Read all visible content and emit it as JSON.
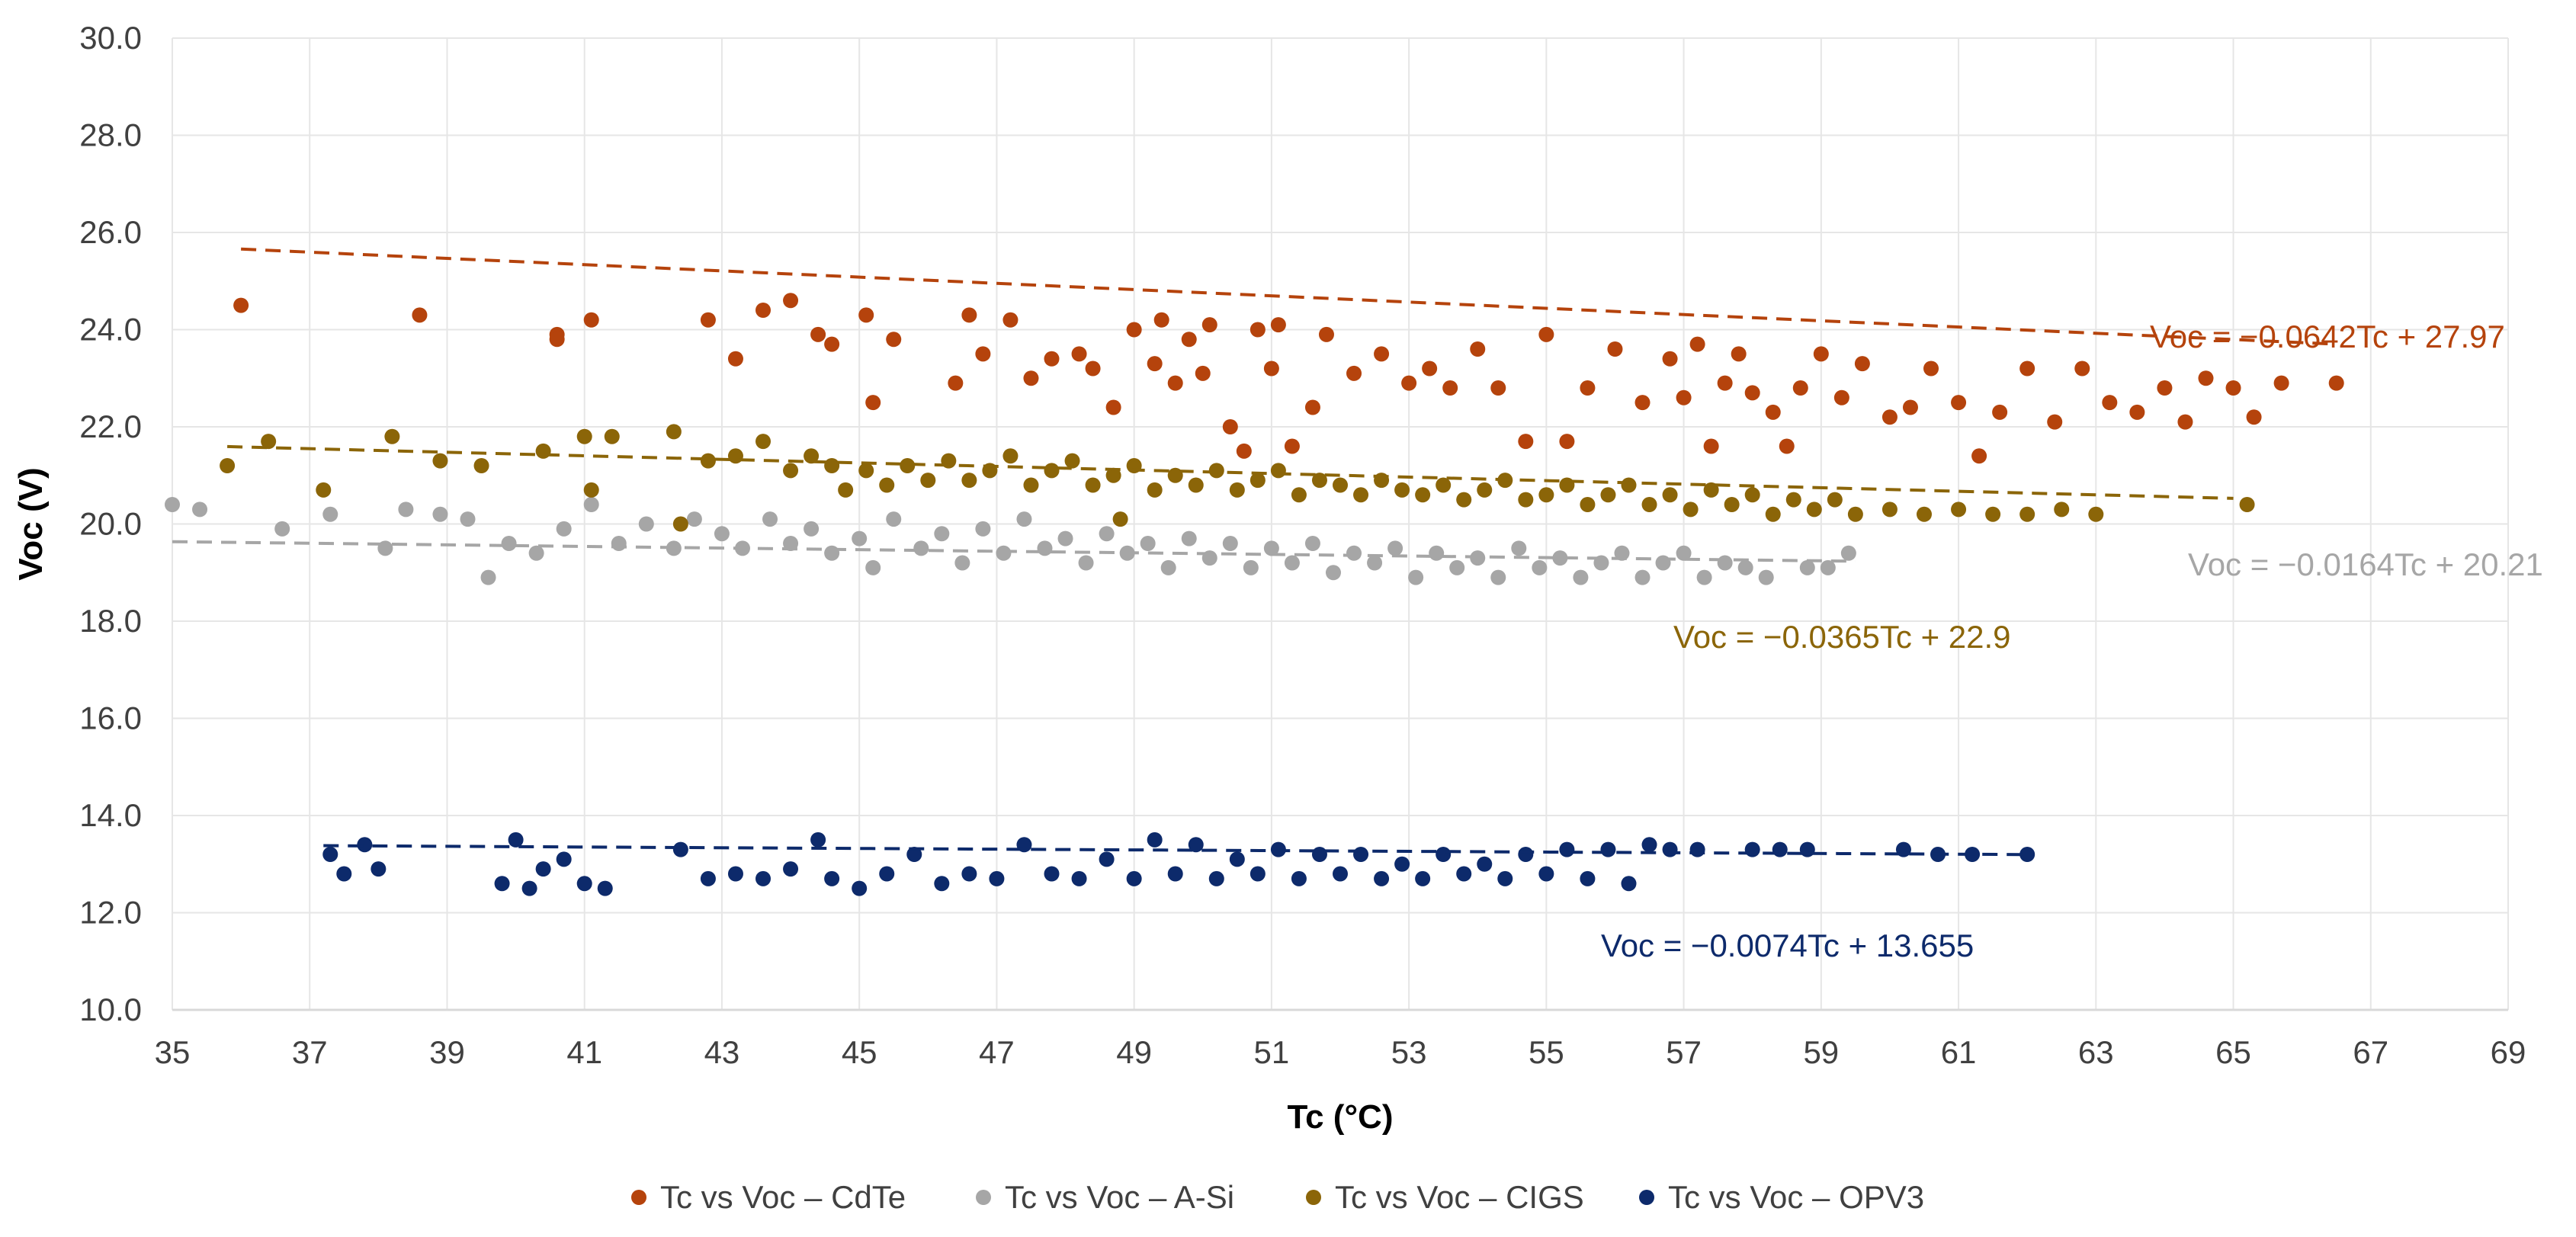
{
  "chart_data": {
    "type": "scatter",
    "title": "",
    "xlabel": "Tc (°C)",
    "ylabel": "Voc (V)",
    "xlim": [
      35,
      69
    ],
    "ylim": [
      10,
      30
    ],
    "xticks": [
      "35",
      "37",
      "39",
      "41",
      "43",
      "45",
      "47",
      "49",
      "51",
      "53",
      "55",
      "57",
      "59",
      "61",
      "63",
      "65",
      "67",
      "69"
    ],
    "yticks": [
      "10.0",
      "12.0",
      "14.0",
      "16.0",
      "18.0",
      "20.0",
      "22.0",
      "24.0",
      "26.0",
      "28.0",
      "30.0"
    ],
    "grid": "vertical-and-horizontal",
    "legend_position": "bottom",
    "series": [
      {
        "name": "Tc vs Voc – CdTe",
        "color": "#b5430c",
        "trendline": {
          "equation": "Voc = −0.0642Tc + 27.97",
          "slope": -0.0642,
          "intercept": 27.97,
          "x_range": [
            36,
            66.5
          ]
        },
        "points": [
          [
            36,
            24.5
          ],
          [
            38.6,
            24.3
          ],
          [
            40.6,
            23.9
          ],
          [
            40.6,
            23.8
          ],
          [
            41.1,
            24.2
          ],
          [
            42.8,
            24.2
          ],
          [
            43.2,
            23.4
          ],
          [
            43.6,
            24.4
          ],
          [
            44,
            24.6
          ],
          [
            44.4,
            23.9
          ],
          [
            44.6,
            23.7
          ],
          [
            45.1,
            24.3
          ],
          [
            45.2,
            22.5
          ],
          [
            45.5,
            23.8
          ],
          [
            46.4,
            22.9
          ],
          [
            46.6,
            24.3
          ],
          [
            46.8,
            23.5
          ],
          [
            47.2,
            24.2
          ],
          [
            47.5,
            23
          ],
          [
            47.8,
            23.4
          ],
          [
            48.2,
            23.5
          ],
          [
            48.4,
            23.2
          ],
          [
            48.7,
            22.4
          ],
          [
            49,
            24
          ],
          [
            49.3,
            23.3
          ],
          [
            49.4,
            24.2
          ],
          [
            49.6,
            22.9
          ],
          [
            49.8,
            23.8
          ],
          [
            50,
            23.1
          ],
          [
            50.1,
            24.1
          ],
          [
            50.4,
            22
          ],
          [
            50.6,
            21.5
          ],
          [
            50.8,
            24
          ],
          [
            51,
            23.2
          ],
          [
            51.1,
            24.1
          ],
          [
            51.3,
            21.6
          ],
          [
            51.6,
            22.4
          ],
          [
            51.8,
            23.9
          ],
          [
            52.2,
            23.1
          ],
          [
            52.6,
            23.5
          ],
          [
            53,
            22.9
          ],
          [
            53.3,
            23.2
          ],
          [
            53.6,
            22.8
          ],
          [
            54,
            23.6
          ],
          [
            54.3,
            22.8
          ],
          [
            54.7,
            21.7
          ],
          [
            55,
            23.9
          ],
          [
            55.3,
            21.7
          ],
          [
            55.6,
            22.8
          ],
          [
            56,
            23.6
          ],
          [
            56.4,
            22.5
          ],
          [
            56.8,
            23.4
          ],
          [
            57,
            22.6
          ],
          [
            57.2,
            23.7
          ],
          [
            57.4,
            21.6
          ],
          [
            57.6,
            22.9
          ],
          [
            57.8,
            23.5
          ],
          [
            58,
            22.7
          ],
          [
            58.3,
            22.3
          ],
          [
            58.5,
            21.6
          ],
          [
            58.7,
            22.8
          ],
          [
            59,
            23.5
          ],
          [
            59.3,
            22.6
          ],
          [
            59.6,
            23.3
          ],
          [
            60,
            22.2
          ],
          [
            60.3,
            22.4
          ],
          [
            60.6,
            23.2
          ],
          [
            61,
            22.5
          ],
          [
            61.3,
            21.4
          ],
          [
            61.6,
            22.3
          ],
          [
            62,
            23.2
          ],
          [
            62.4,
            22.1
          ],
          [
            62.8,
            23.2
          ],
          [
            63.2,
            22.5
          ],
          [
            63.6,
            22.3
          ],
          [
            64,
            22.8
          ],
          [
            64.3,
            22.1
          ],
          [
            64.6,
            23
          ],
          [
            65,
            22.8
          ],
          [
            65.3,
            22.2
          ],
          [
            65.7,
            22.9
          ],
          [
            66.5,
            22.9
          ]
        ]
      },
      {
        "name": "Tc vs Voc – A-Si",
        "color": "#a6a6a6",
        "trendline": {
          "equation": "Voc = −0.0164Tc + 20.21",
          "slope": -0.0164,
          "intercept": 20.21,
          "x_range": [
            35,
            59.5
          ]
        },
        "points": [
          [
            35,
            20.4
          ],
          [
            35.4,
            20.3
          ],
          [
            36.6,
            19.9
          ],
          [
            37.3,
            20.2
          ],
          [
            38.1,
            19.5
          ],
          [
            38.4,
            20.3
          ],
          [
            38.9,
            20.2
          ],
          [
            39.3,
            20.1
          ],
          [
            39.6,
            18.9
          ],
          [
            39.9,
            19.6
          ],
          [
            40.3,
            19.4
          ],
          [
            40.7,
            19.9
          ],
          [
            41.1,
            20.4
          ],
          [
            41.5,
            19.6
          ],
          [
            41.9,
            20
          ],
          [
            42.3,
            19.5
          ],
          [
            42.6,
            20.1
          ],
          [
            43,
            19.8
          ],
          [
            43.3,
            19.5
          ],
          [
            43.7,
            20.1
          ],
          [
            44,
            19.6
          ],
          [
            44.3,
            19.9
          ],
          [
            44.6,
            19.4
          ],
          [
            45,
            19.7
          ],
          [
            45.2,
            19.1
          ],
          [
            45.5,
            20.1
          ],
          [
            45.9,
            19.5
          ],
          [
            46.2,
            19.8
          ],
          [
            46.5,
            19.2
          ],
          [
            46.8,
            19.9
          ],
          [
            47.1,
            19.4
          ],
          [
            47.4,
            20.1
          ],
          [
            47.7,
            19.5
          ],
          [
            48,
            19.7
          ],
          [
            48.3,
            19.2
          ],
          [
            48.6,
            19.8
          ],
          [
            48.9,
            19.4
          ],
          [
            49.2,
            19.6
          ],
          [
            49.5,
            19.1
          ],
          [
            49.8,
            19.7
          ],
          [
            50.1,
            19.3
          ],
          [
            50.4,
            19.6
          ],
          [
            50.7,
            19.1
          ],
          [
            51,
            19.5
          ],
          [
            51.3,
            19.2
          ],
          [
            51.6,
            19.6
          ],
          [
            51.9,
            19
          ],
          [
            52.2,
            19.4
          ],
          [
            52.5,
            19.2
          ],
          [
            52.8,
            19.5
          ],
          [
            53.1,
            18.9
          ],
          [
            53.4,
            19.4
          ],
          [
            53.7,
            19.1
          ],
          [
            54,
            19.3
          ],
          [
            54.3,
            18.9
          ],
          [
            54.6,
            19.5
          ],
          [
            54.9,
            19.1
          ],
          [
            55.2,
            19.3
          ],
          [
            55.5,
            18.9
          ],
          [
            55.8,
            19.2
          ],
          [
            56.1,
            19.4
          ],
          [
            56.4,
            18.9
          ],
          [
            56.7,
            19.2
          ],
          [
            57,
            19.4
          ],
          [
            57.3,
            18.9
          ],
          [
            57.6,
            19.2
          ],
          [
            57.9,
            19.1
          ],
          [
            58.2,
            18.9
          ],
          [
            58.8,
            19.1
          ],
          [
            59.1,
            19.1
          ],
          [
            59.4,
            19.4
          ]
        ]
      },
      {
        "name": "Tc vs Voc – CIGS",
        "color": "#8b6508",
        "trendline": {
          "equation": "Voc = −0.0365Tc + 22.9",
          "slope": -0.0365,
          "intercept": 22.9,
          "x_range": [
            35.8,
            65
          ]
        },
        "points": [
          [
            35.8,
            21.2
          ],
          [
            36.4,
            21.7
          ],
          [
            37.2,
            20.7
          ],
          [
            38.2,
            21.8
          ],
          [
            38.9,
            21.3
          ],
          [
            39.5,
            21.2
          ],
          [
            40.4,
            21.5
          ],
          [
            41,
            21.8
          ],
          [
            41.4,
            21.8
          ],
          [
            41.1,
            20.7
          ],
          [
            42.3,
            21.9
          ],
          [
            42.4,
            20
          ],
          [
            42.8,
            21.3
          ],
          [
            43.2,
            21.4
          ],
          [
            43.6,
            21.7
          ],
          [
            44,
            21.1
          ],
          [
            44.3,
            21.4
          ],
          [
            44.6,
            21.2
          ],
          [
            44.8,
            20.7
          ],
          [
            45.1,
            21.1
          ],
          [
            45.4,
            20.8
          ],
          [
            45.7,
            21.2
          ],
          [
            46,
            20.9
          ],
          [
            46.3,
            21.3
          ],
          [
            46.6,
            20.9
          ],
          [
            46.9,
            21.1
          ],
          [
            47.2,
            21.4
          ],
          [
            47.5,
            20.8
          ],
          [
            47.8,
            21.1
          ],
          [
            48.1,
            21.3
          ],
          [
            48.4,
            20.8
          ],
          [
            48.7,
            21
          ],
          [
            48.8,
            20.1
          ],
          [
            49,
            21.2
          ],
          [
            49.3,
            20.7
          ],
          [
            49.6,
            21
          ],
          [
            49.9,
            20.8
          ],
          [
            50.2,
            21.1
          ],
          [
            50.5,
            20.7
          ],
          [
            50.8,
            20.9
          ],
          [
            51.1,
            21.1
          ],
          [
            51.4,
            20.6
          ],
          [
            51.7,
            20.9
          ],
          [
            52,
            20.8
          ],
          [
            52.3,
            20.6
          ],
          [
            52.6,
            20.9
          ],
          [
            52.9,
            20.7
          ],
          [
            53.2,
            20.6
          ],
          [
            53.5,
            20.8
          ],
          [
            53.8,
            20.5
          ],
          [
            54.1,
            20.7
          ],
          [
            54.4,
            20.9
          ],
          [
            54.7,
            20.5
          ],
          [
            55,
            20.6
          ],
          [
            55.3,
            20.8
          ],
          [
            55.6,
            20.4
          ],
          [
            55.9,
            20.6
          ],
          [
            56.2,
            20.8
          ],
          [
            56.5,
            20.4
          ],
          [
            56.8,
            20.6
          ],
          [
            57.1,
            20.3
          ],
          [
            57.4,
            20.7
          ],
          [
            57.7,
            20.4
          ],
          [
            58,
            20.6
          ],
          [
            58.3,
            20.2
          ],
          [
            58.6,
            20.5
          ],
          [
            58.9,
            20.3
          ],
          [
            59.2,
            20.5
          ],
          [
            59.5,
            20.2
          ],
          [
            60,
            20.3
          ],
          [
            60.5,
            20.2
          ],
          [
            61,
            20.3
          ],
          [
            61.5,
            20.2
          ],
          [
            62,
            20.2
          ],
          [
            62.5,
            20.3
          ],
          [
            63,
            20.2
          ],
          [
            65.2,
            20.4
          ]
        ]
      },
      {
        "name": "Tc vs Voc – OPV3",
        "color": "#0d2a6b",
        "trendline": {
          "equation": "Voc = −0.0074Tc + 13.655",
          "slope": -0.0074,
          "intercept": 13.655,
          "x_range": [
            37.2,
            62
          ]
        },
        "points": [
          [
            37.3,
            13.2
          ],
          [
            37.5,
            12.8
          ],
          [
            37.8,
            13.4
          ],
          [
            38,
            12.9
          ],
          [
            39.8,
            12.6
          ],
          [
            40,
            13.5
          ],
          [
            40.2,
            12.5
          ],
          [
            40.4,
            12.9
          ],
          [
            40.7,
            13.1
          ],
          [
            41,
            12.6
          ],
          [
            41.3,
            12.5
          ],
          [
            42.4,
            13.3
          ],
          [
            42.8,
            12.7
          ],
          [
            43.2,
            12.8
          ],
          [
            43.6,
            12.7
          ],
          [
            44,
            12.9
          ],
          [
            44.4,
            13.5
          ],
          [
            44.6,
            12.7
          ],
          [
            45,
            12.5
          ],
          [
            45.4,
            12.8
          ],
          [
            45.8,
            13.2
          ],
          [
            46.2,
            12.6
          ],
          [
            46.6,
            12.8
          ],
          [
            47,
            12.7
          ],
          [
            47.4,
            13.4
          ],
          [
            47.8,
            12.8
          ],
          [
            48.2,
            12.7
          ],
          [
            48.6,
            13.1
          ],
          [
            49,
            12.7
          ],
          [
            49.3,
            13.5
          ],
          [
            49.6,
            12.8
          ],
          [
            49.9,
            13.4
          ],
          [
            50.2,
            12.7
          ],
          [
            50.5,
            13.1
          ],
          [
            50.8,
            12.8
          ],
          [
            51.1,
            13.3
          ],
          [
            51.4,
            12.7
          ],
          [
            51.7,
            13.2
          ],
          [
            52,
            12.8
          ],
          [
            52.3,
            13.2
          ],
          [
            52.6,
            12.7
          ],
          [
            52.9,
            13
          ],
          [
            53.2,
            12.7
          ],
          [
            53.5,
            13.2
          ],
          [
            53.8,
            12.8
          ],
          [
            54.1,
            13
          ],
          [
            54.4,
            12.7
          ],
          [
            54.7,
            13.2
          ],
          [
            55,
            12.8
          ],
          [
            55.3,
            13.3
          ],
          [
            55.6,
            12.7
          ],
          [
            55.9,
            13.3
          ],
          [
            56.2,
            12.6
          ],
          [
            56.5,
            13.4
          ],
          [
            56.8,
            13.3
          ],
          [
            57.2,
            13.3
          ],
          [
            58,
            13.3
          ],
          [
            58.4,
            13.3
          ],
          [
            58.8,
            13.3
          ],
          [
            60.2,
            13.3
          ],
          [
            60.7,
            13.2
          ],
          [
            61.2,
            13.2
          ],
          [
            62,
            13.2
          ]
        ]
      }
    ]
  }
}
